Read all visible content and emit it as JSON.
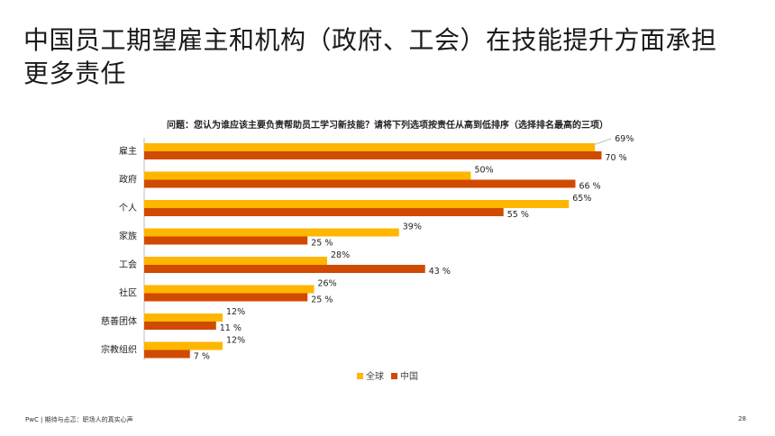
{
  "slide": {
    "title_line1": "中国员工期望雇主和机构（政府、工会）在技能提升方面承担",
    "title_line2": "更多责任",
    "question": "问题：您认为谁应该主要负责帮助员工学习新技能？请将下列选项按责任从高到低排序（选择排名最高的三项）",
    "footer": "PwC | 期待与忐忑：职场人的真实心声",
    "page_number": "28"
  },
  "colors": {
    "global": "#FFB600",
    "china": "#D04A02",
    "text": "#1a1a1a"
  },
  "chart_data": {
    "type": "bar",
    "orientation": "horizontal",
    "title": "",
    "xlabel": "",
    "ylabel": "",
    "xlim": [
      0,
      100
    ],
    "grid": false,
    "legend_position": "bottom-center",
    "categories": [
      "雇主",
      "政府",
      "个人",
      "家族",
      "工会",
      "社区",
      "慈善团体",
      "宗教组织"
    ],
    "series": [
      {
        "name": "全球",
        "values": [
          69,
          50,
          65,
          39,
          28,
          26,
          12,
          12
        ],
        "labels": [
          "69%",
          "50%",
          "65%",
          "39%",
          "28%",
          "26%",
          "12%",
          "12%"
        ]
      },
      {
        "name": "中国",
        "values": [
          70,
          66,
          55,
          25,
          43,
          25,
          11,
          7
        ],
        "labels": [
          "70 %",
          "66 %",
          "55 %",
          "25 %",
          "43 %",
          "25 %",
          "11 %",
          "7 %"
        ]
      }
    ]
  }
}
